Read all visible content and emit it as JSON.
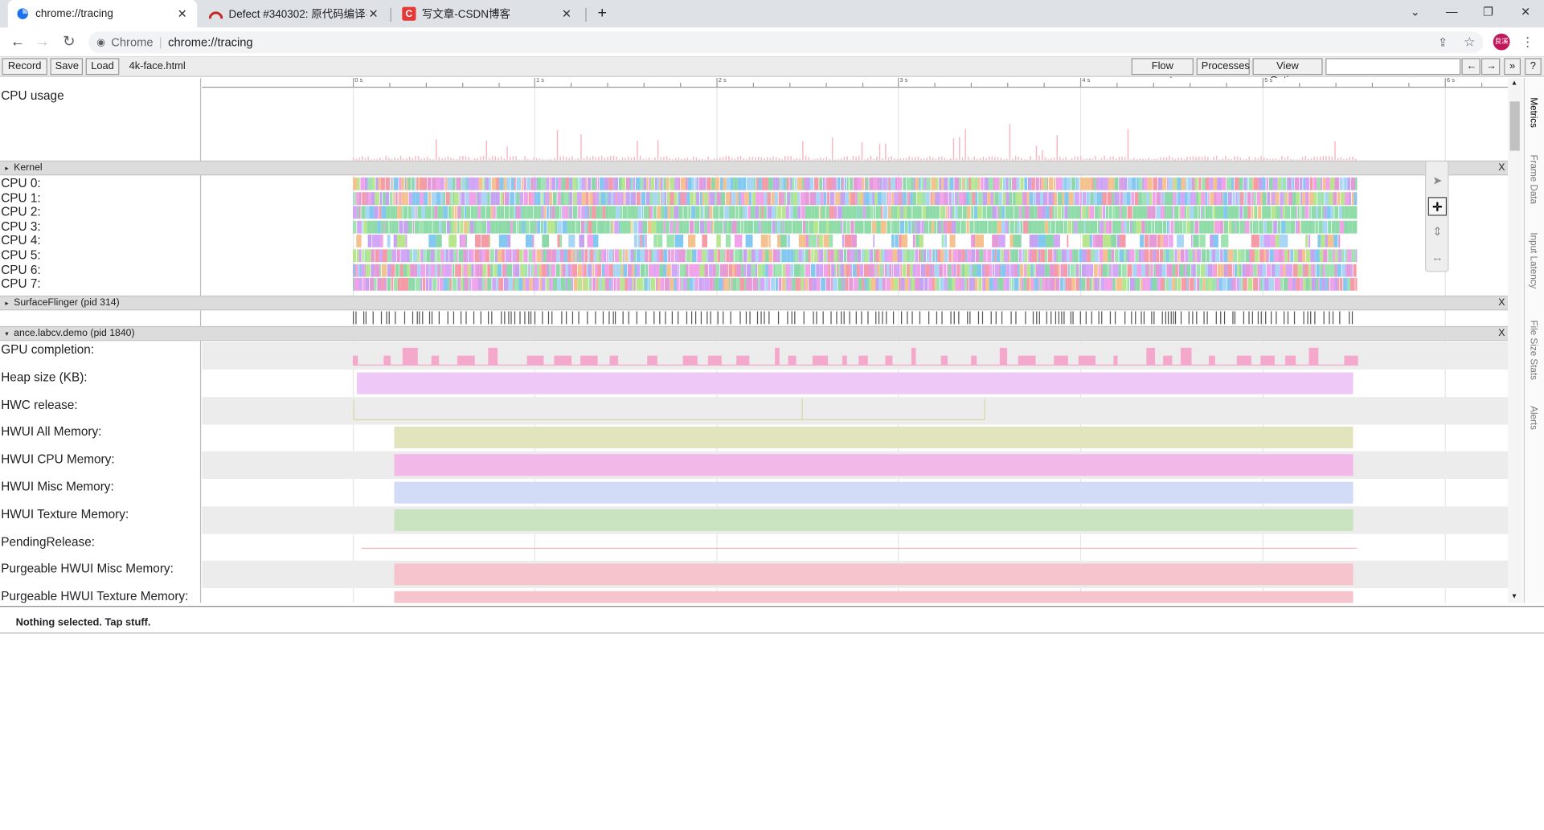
{
  "browser": {
    "tabs": [
      {
        "title": "chrome://tracing",
        "active": true
      },
      {
        "title": "Defect #340302: 原代码编译不通",
        "active": false
      },
      {
        "title": "写文章-CSDN博客",
        "active": false
      }
    ],
    "address": {
      "site": "Chrome",
      "url": "chrome://tracing"
    },
    "profile": "良溪"
  },
  "tracing_toolbar": {
    "record": "Record",
    "save": "Save",
    "load": "Load",
    "filename": "4k-face.html",
    "flow_events": "Flow events",
    "processes": "Processes",
    "view_options": "View Options",
    "search_placeholder": "",
    "prev": "←",
    "next": "→",
    "more": "»",
    "help": "?"
  },
  "timeline": {
    "ticks": [
      "0 s",
      "1 s",
      "2 s",
      "3 s",
      "4 s",
      "5 s",
      "6 s"
    ]
  },
  "tracks": {
    "cpu_usage_label": "CPU usage",
    "kernel_group": "Kernel",
    "cpus": [
      "CPU 0:",
      "CPU 1:",
      "CPU 2:",
      "CPU 3:",
      "CPU 4:",
      "CPU 5:",
      "CPU 6:",
      "CPU 7:"
    ],
    "surfaceflinger_group": "SurfaceFlinger (pid 314)",
    "app_group": "ance.labcv.demo (pid 1840)",
    "counters": [
      {
        "label": "GPU completion:",
        "color": "#f4a9cc"
      },
      {
        "label": "Heap size (KB):",
        "color": "#eec9f7"
      },
      {
        "label": "HWC release:",
        "color": "#e9e8cc"
      },
      {
        "label": "HWUI All Memory:",
        "color": "#e1e4bc"
      },
      {
        "label": "HWUI CPU Memory:",
        "color": "#f2b9e8"
      },
      {
        "label": "HWUI Misc Memory:",
        "color": "#d3dcf7"
      },
      {
        "label": "HWUI Texture Memory:",
        "color": "#c9e3c0"
      },
      {
        "label": "PendingRelease:",
        "color": "#f4b4bc"
      },
      {
        "label": "Purgeable HWUI Misc Memory:",
        "color": "#f6c4cc"
      },
      {
        "label": "Purgeable HWUI Texture Memory:",
        "color": "#f6c4cc"
      }
    ]
  },
  "side_tabs": [
    "Metrics",
    "Frame Data",
    "Input Latency",
    "File Size Stats",
    "Alerts"
  ],
  "status": "Nothing selected. Tap stuff."
}
